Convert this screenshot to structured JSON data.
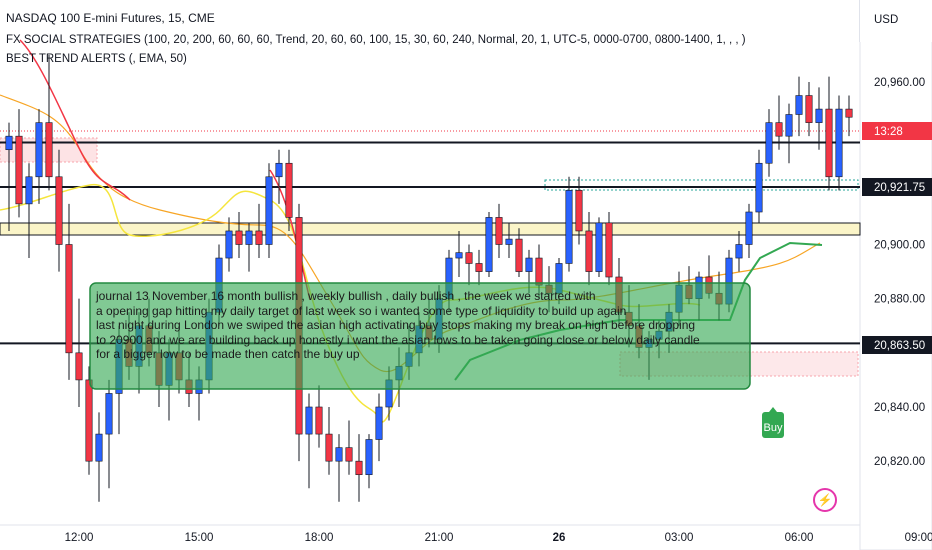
{
  "header": {
    "title": "NASDAQ 100 E-mini Futures, 15, CME",
    "indicator1": "FX SOCIAL STRATEGIES (100, 20, 200, 60, 60, 60, Trend, 20, 60, 60, 100, 15, 30, 60, 240, Normal, 20, 1, UTC-5, 0000-0700, 0800-1400, 1, , , )",
    "indicator2": "BEST TREND ALERTS (, EMA, 50)"
  },
  "currency": "USD",
  "annotation": "journal 13 November 16 month bullish , weekly bullish , daily bullish , the week we started with\na opening gap hitting my daily target of last week so i wanted some type of liquidity to build up again\nlast night during London we swiped the asian high activating buy stops making my break on high before dropping\nto 20900 and we are building back up honestly i want the asian lows to be taken going close or below daily candle\nfor a bigger low to be made then catch the buy up",
  "buy_label": "Buy",
  "bolt_icon": "⚡",
  "colors": {
    "up": "#2962ff",
    "down": "#f23645",
    "doji": "#ffffff"
  },
  "chart_data": {
    "type": "candlestick",
    "title": "NASDAQ 100 E-mini Futures, 15, CME",
    "y_range": [
      20800,
      20980
    ],
    "y_ticks": [
      {
        "value": 20960,
        "label": "20,960.00"
      },
      {
        "value": 20900,
        "label": "20,900.00"
      },
      {
        "value": 20880,
        "label": "20,880.00"
      },
      {
        "value": 20840,
        "label": "20,840.00"
      },
      {
        "value": 20820,
        "label": "20,820.00"
      }
    ],
    "x_ticks": [
      {
        "label": "12:00",
        "index": 7
      },
      {
        "label": "15:00",
        "index": 19
      },
      {
        "label": "18:00",
        "index": 31
      },
      {
        "label": "21:00",
        "index": 43
      },
      {
        "label": "26",
        "index": 55
      },
      {
        "label": "03:00",
        "index": 67
      },
      {
        "label": "06:00",
        "index": 79
      },
      {
        "label": "09:00",
        "index": 91
      }
    ],
    "price_tags": [
      {
        "value": 20921.75,
        "label": "20,921.75",
        "style": "black"
      },
      {
        "value": 20863.5,
        "label": "20,863.50",
        "style": "black"
      }
    ],
    "current_price": {
      "value": 20947,
      "label": "13:28"
    },
    "levels": [
      20924,
      20863.5
    ],
    "candles": [
      [
        20935,
        20945,
        20905,
        20940
      ],
      [
        20940,
        20950,
        20910,
        20915
      ],
      [
        20915,
        20930,
        20895,
        20925
      ],
      [
        20925,
        20950,
        20915,
        20945
      ],
      [
        20945,
        20970,
        20920,
        20925
      ],
      [
        20925,
        20935,
        20890,
        20900
      ],
      [
        20900,
        20915,
        20850,
        20860
      ],
      [
        20860,
        20880,
        20840,
        20850
      ],
      [
        20850,
        20855,
        20815,
        20820
      ],
      [
        20820,
        20838,
        20805,
        20830
      ],
      [
        20830,
        20850,
        20810,
        20845
      ],
      [
        20845,
        20870,
        20830,
        20865
      ],
      [
        20865,
        20875,
        20850,
        20855
      ],
      [
        20855,
        20875,
        20845,
        20870
      ],
      [
        20870,
        20880,
        20855,
        20860
      ],
      [
        20860,
        20868,
        20840,
        20848
      ],
      [
        20848,
        20865,
        20835,
        20860
      ],
      [
        20860,
        20870,
        20845,
        20850
      ],
      [
        20850,
        20860,
        20840,
        20845
      ],
      [
        20845,
        20855,
        20835,
        20850
      ],
      [
        20850,
        20880,
        20845,
        20875
      ],
      [
        20875,
        20900,
        20870,
        20895
      ],
      [
        20895,
        20910,
        20890,
        20905
      ],
      [
        20905,
        20912,
        20895,
        20900
      ],
      [
        20900,
        20908,
        20890,
        20905
      ],
      [
        20905,
        20915,
        20895,
        20900
      ],
      [
        20900,
        20930,
        20895,
        20925
      ],
      [
        20925,
        20935,
        20915,
        20930
      ],
      [
        20930,
        20935,
        20905,
        20910
      ],
      [
        20910,
        20915,
        20820,
        20830
      ],
      [
        20830,
        20845,
        20810,
        20840
      ],
      [
        20840,
        20848,
        20825,
        20830
      ],
      [
        20830,
        20840,
        20815,
        20820
      ],
      [
        20820,
        20830,
        20805,
        20825
      ],
      [
        20825,
        20835,
        20815,
        20820
      ],
      [
        20820,
        20830,
        20805,
        20815
      ],
      [
        20815,
        20830,
        20810,
        20828
      ],
      [
        20828,
        20845,
        20820,
        20840
      ],
      [
        20840,
        20855,
        20835,
        20850
      ],
      [
        20850,
        20862,
        20840,
        20855
      ],
      [
        20855,
        20870,
        20850,
        20860
      ],
      [
        20860,
        20875,
        20855,
        20870
      ],
      [
        20870,
        20880,
        20862,
        20865
      ],
      [
        20865,
        20885,
        20860,
        20880
      ],
      [
        20880,
        20898,
        20875,
        20895
      ],
      [
        20895,
        20905,
        20888,
        20897
      ],
      [
        20897,
        20900,
        20885,
        20893
      ],
      [
        20893,
        20898,
        20885,
        20890
      ],
      [
        20890,
        20912,
        20888,
        20910
      ],
      [
        20910,
        20915,
        20895,
        20900
      ],
      [
        20900,
        20908,
        20895,
        20902
      ],
      [
        20902,
        20906,
        20888,
        20890
      ],
      [
        20890,
        20898,
        20882,
        20895
      ],
      [
        20895,
        20900,
        20880,
        20885
      ],
      [
        20885,
        20892,
        20875,
        20882
      ],
      [
        20882,
        20895,
        20878,
        20893
      ],
      [
        20893,
        20925,
        20890,
        20920
      ],
      [
        20920,
        20925,
        20900,
        20905
      ],
      [
        20905,
        20912,
        20885,
        20890
      ],
      [
        20890,
        20910,
        20888,
        20908
      ],
      [
        20908,
        20912,
        20885,
        20888
      ],
      [
        20888,
        20895,
        20870,
        20875
      ],
      [
        20875,
        20885,
        20862,
        20870
      ],
      [
        20870,
        20878,
        20858,
        20862
      ],
      [
        20862,
        20868,
        20850,
        20865
      ],
      [
        20865,
        20872,
        20858,
        20868
      ],
      [
        20868,
        20878,
        20860,
        20875
      ],
      [
        20875,
        20890,
        20870,
        20885
      ],
      [
        20885,
        20892,
        20878,
        20880
      ],
      [
        20880,
        20890,
        20872,
        20888
      ],
      [
        20888,
        20896,
        20880,
        20882
      ],
      [
        20882,
        20890,
        20872,
        20878
      ],
      [
        20878,
        20898,
        20875,
        20895
      ],
      [
        20895,
        20905,
        20890,
        20900
      ],
      [
        20900,
        20915,
        20895,
        20912
      ],
      [
        20912,
        20935,
        20908,
        20930
      ],
      [
        20930,
        20950,
        20925,
        20945
      ],
      [
        20945,
        20955,
        20935,
        20940
      ],
      [
        20940,
        20952,
        20930,
        20948
      ],
      [
        20948,
        20962,
        20940,
        20955
      ],
      [
        20955,
        20960,
        20940,
        20945
      ],
      [
        20945,
        20958,
        20935,
        20950
      ],
      [
        20950,
        20962,
        20920,
        20925
      ],
      [
        20925,
        20955,
        20920,
        20950
      ],
      [
        20950,
        20955,
        20940,
        20947
      ]
    ]
  }
}
